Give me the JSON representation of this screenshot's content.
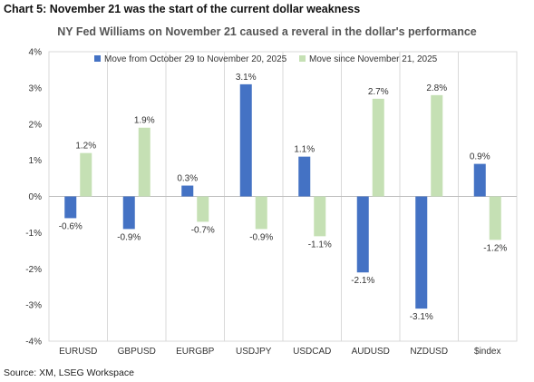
{
  "header": {
    "heading": "Chart 5: November 21 was the start of the current dollar weakness",
    "source": "Source: XM, LSEG Workspace"
  },
  "chart_data": {
    "type": "bar",
    "title": "NY Fed Williams on November 21 caused a reveral in the dollar's performance",
    "categories": [
      "EURUSD",
      "GBPUSD",
      "EURGBP",
      "USDJPY",
      "USDCAD",
      "AUDUSD",
      "NZDUSD",
      "$index"
    ],
    "series": [
      {
        "name": "Move from October 29 to November 20, 2025",
        "color": "#4472C4",
        "values": [
          -0.6,
          -0.9,
          0.3,
          3.1,
          1.1,
          -2.1,
          -3.1,
          0.9
        ],
        "labels": [
          "-0.6%",
          "-0.9%",
          "0.3%",
          "3.1%",
          "1.1%",
          "-2.1%",
          "-3.1%",
          "0.9%"
        ]
      },
      {
        "name": "Move since November 21, 2025",
        "color": "#C5E0B4",
        "values": [
          1.2,
          1.9,
          -0.7,
          -0.9,
          -1.1,
          2.7,
          2.8,
          -1.2
        ],
        "labels": [
          "1.2%",
          "1.9%",
          "-0.7%",
          "-0.9%",
          "-1.1%",
          "2.7%",
          "2.8%",
          "-1.2%"
        ]
      }
    ],
    "ylim": [
      -4,
      4
    ],
    "yticks": [
      4,
      3,
      2,
      1,
      0,
      -1,
      -2,
      -3,
      -4
    ],
    "ytick_labels": [
      "4%",
      "3%",
      "2%",
      "1%",
      "0%",
      "-1%",
      "-2%",
      "-3%",
      "-4%"
    ],
    "gridlines": "vertical category separators",
    "legend_position": "top"
  }
}
